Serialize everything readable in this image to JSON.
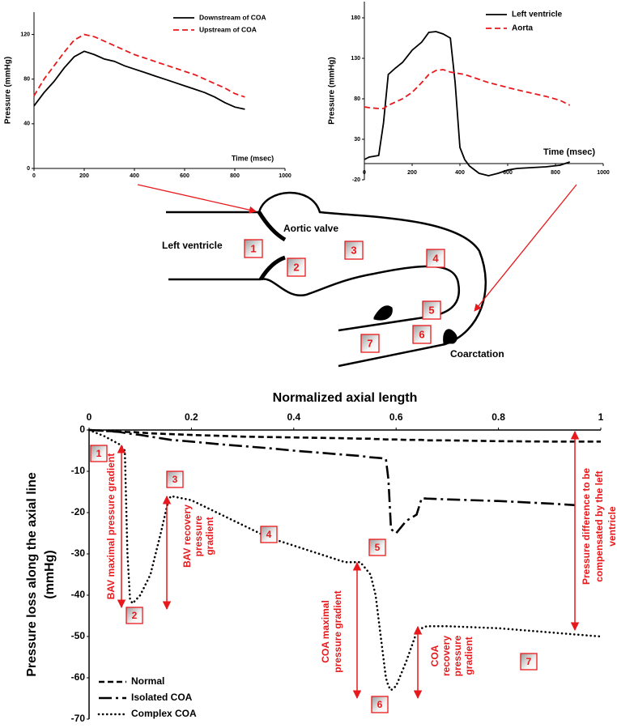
{
  "chart_data": [
    {
      "type": "line",
      "xlabel": "Time (msec)",
      "ylabel": "Pressure (mmHg)",
      "legend": "upper right",
      "x": [
        0,
        40,
        80,
        120,
        160,
        200,
        240,
        280,
        320,
        360,
        400,
        440,
        480,
        520,
        560,
        600,
        640,
        680,
        720,
        760,
        800,
        840
      ],
      "series": [
        {
          "name": "Downstream of COA",
          "color": "#000000",
          "style": "solid",
          "values": [
            56,
            68,
            78,
            90,
            100,
            105,
            102,
            98,
            96,
            92,
            89,
            86,
            83,
            80,
            77,
            74,
            71,
            68,
            64,
            59,
            55,
            53
          ]
        },
        {
          "name": "Upstream of COA",
          "color": "#e8191c",
          "style": "dashed",
          "values": [
            65,
            80,
            92,
            104,
            115,
            120,
            118,
            114,
            110,
            106,
            102,
            99,
            96,
            93,
            90,
            87,
            84,
            80,
            76,
            72,
            67,
            64
          ]
        }
      ],
      "xlim": [
        0,
        1000
      ],
      "xticks": [
        0,
        200,
        400,
        600,
        800,
        1000
      ],
      "ylim": [
        0,
        140
      ],
      "yticks": [
        0,
        40,
        80,
        120
      ]
    },
    {
      "type": "line",
      "xlabel": "Time (msec)",
      "ylabel": "Pressure (mmHg)",
      "legend": "upper right",
      "x": [
        0,
        20,
        60,
        80,
        100,
        130,
        160,
        200,
        240,
        270,
        300,
        330,
        360,
        380,
        400,
        420,
        440,
        480,
        520,
        560,
        600,
        640,
        700,
        760,
        820,
        860
      ],
      "series": [
        {
          "name": "Left ventricle",
          "color": "#000000",
          "style": "solid",
          "values": [
            5,
            8,
            10,
            50,
            110,
            118,
            125,
            140,
            150,
            162,
            163,
            160,
            155,
            100,
            20,
            5,
            -3,
            -12,
            -15,
            -12,
            -8,
            -6,
            -5,
            -4,
            -2,
            2
          ]
        },
        {
          "name": "Aorta",
          "color": "#e8191c",
          "style": "dashed",
          "values": [
            70,
            69,
            68,
            68,
            72,
            76,
            80,
            88,
            100,
            110,
            115,
            116,
            113,
            112,
            111,
            110,
            108,
            104,
            100,
            97,
            94,
            91,
            87,
            83,
            78,
            72
          ]
        }
      ],
      "xlim": [
        0,
        1000
      ],
      "xticks": [
        0,
        200,
        400,
        600,
        800,
        1000
      ],
      "ylim": [
        -20,
        200
      ],
      "yticks": [
        -20,
        30,
        80,
        130,
        180
      ]
    },
    {
      "type": "line",
      "xlabel": "Normalized axial length",
      "ylabel": [
        "Pressure loss along the axial line",
        "(mmHg)"
      ],
      "legend": "lower left",
      "x": [
        0,
        0.03,
        0.06,
        0.07,
        0.075,
        0.08,
        0.085,
        0.1,
        0.12,
        0.14,
        0.155,
        0.16,
        0.2,
        0.25,
        0.3,
        0.35,
        0.4,
        0.45,
        0.5,
        0.53,
        0.55,
        0.56,
        0.57,
        0.58,
        0.585,
        0.59,
        0.6,
        0.62,
        0.64,
        0.65,
        0.66,
        0.7,
        0.8,
        0.9,
        0.95,
        1
      ],
      "series": [
        {
          "name": "Normal",
          "color": "#000000",
          "style": "dashed",
          "values": [
            0,
            -0.2,
            -0.4,
            -0.45,
            -0.5,
            -0.5,
            -0.5,
            -0.6,
            -0.8,
            -0.9,
            -1,
            -1,
            -1.2,
            -1.4,
            -1.6,
            -1.7,
            -1.8,
            -1.9,
            -2,
            -2.1,
            -2.1,
            -2.2,
            -2.2,
            -2.3,
            -2.3,
            -2.3,
            -2.3,
            -2.4,
            -2.4,
            -2.4,
            -2.5,
            -2.5,
            -2.7,
            -2.8,
            -2.8,
            -2.8
          ]
        },
        {
          "name": "Isolated COA",
          "color": "#000000",
          "style": "dashdot",
          "values": [
            0,
            -0.2,
            -0.5,
            -0.7,
            -0.8,
            -0.9,
            -1,
            -1.2,
            -1.6,
            -2,
            -2.3,
            -2.4,
            -2.8,
            -3.4,
            -3.9,
            -4.4,
            -5,
            -5.5,
            -6,
            -6.3,
            -6.6,
            -6.7,
            -6.8,
            -7,
            -12,
            -24,
            -25,
            -22,
            -20.5,
            -16.5,
            -16.6,
            -16.8,
            -17.2,
            -17.8,
            -18.2,
            null
          ]
        },
        {
          "name": "Complex COA",
          "color": "#000000",
          "style": "dotted",
          "values": [
            0,
            -1.5,
            -3.5,
            -5,
            -30,
            -41,
            -42,
            -40,
            -35,
            -25,
            -17,
            -16,
            -17,
            -20,
            -23,
            -26,
            -28,
            -30,
            -32,
            -32,
            -35,
            -40,
            -50,
            -60,
            -62,
            -63,
            -62,
            -56,
            -49,
            -48,
            -47.5,
            -47.5,
            -48,
            -49,
            -49.5,
            -50
          ]
        }
      ],
      "xlim": [
        0,
        1
      ],
      "xticks": [
        0,
        0.2,
        0.4,
        0.6,
        0.8,
        1
      ],
      "ylim": [
        -70,
        0
      ],
      "yticks": [
        0,
        -10,
        -20,
        -30,
        -40,
        -50,
        -60,
        -70
      ],
      "markers": [
        "1",
        "2",
        "3",
        "4",
        "5",
        "6",
        "7"
      ],
      "notes": [
        [
          "BAV maximal pressure gradient"
        ],
        [
          "BAV recovery",
          "pressure",
          "gradient"
        ],
        [
          "COA maximal",
          "pressure gradient"
        ],
        [
          "COA",
          "recovery",
          "pressure",
          "gradient"
        ],
        [
          "Pressure difference to be",
          "compensated by the left",
          "ventricle"
        ]
      ]
    }
  ],
  "diagram": {
    "labels": [
      "Left ventricle",
      "Aortic valve",
      "Coarctation"
    ],
    "markers": [
      "1",
      "2",
      "3",
      "4",
      "5",
      "6",
      "7"
    ]
  }
}
